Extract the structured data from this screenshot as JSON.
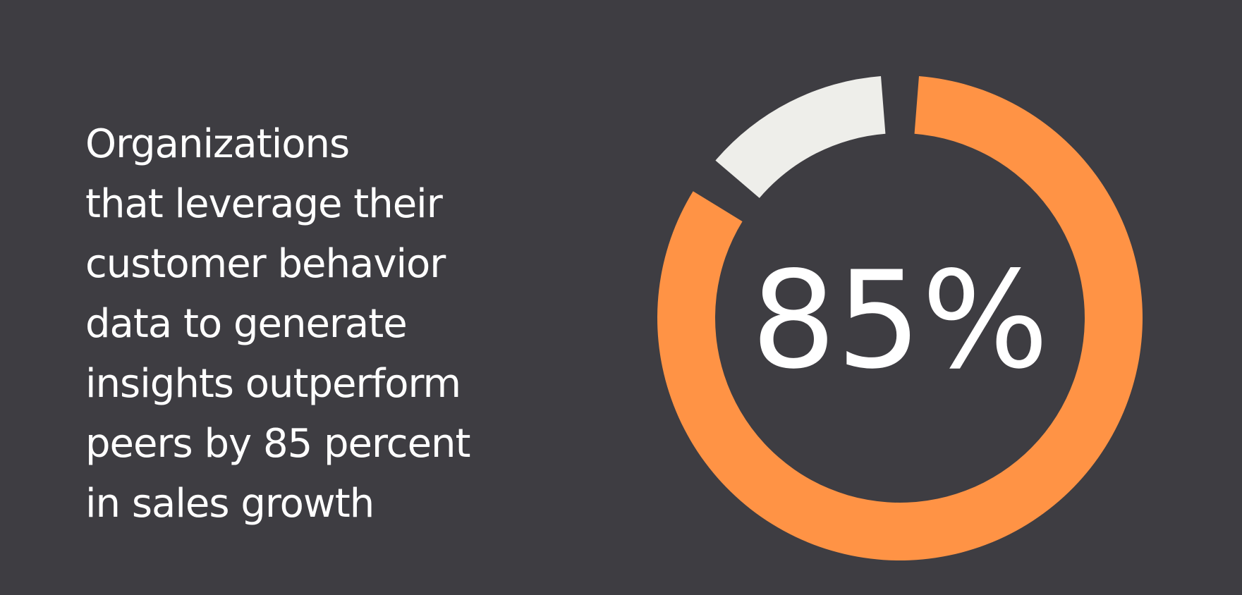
{
  "statement_lines": [
    "Organizations",
    "that leverage their",
    "customer behavior",
    "data to generate",
    "insights outperform",
    "peers by 85 percent",
    "in sales growth"
  ],
  "colors": {
    "background": "#3e3d42",
    "accent": "#ff9345",
    "remainder": "#eeeeea",
    "text": "#ffffff"
  },
  "chart_data": {
    "type": "pie",
    "style": "donut",
    "center_label": "85%",
    "slices": [
      {
        "value": 85,
        "color": "#ff9345"
      },
      {
        "value": 15,
        "color": "#eeeeea"
      }
    ]
  }
}
